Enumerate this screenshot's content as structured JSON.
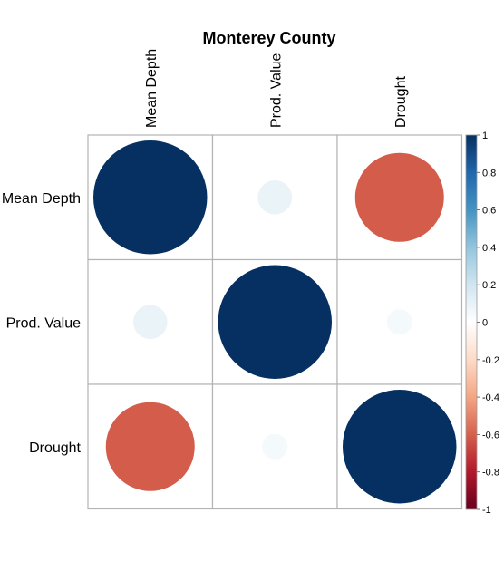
{
  "chart_data": {
    "type": "heatmap",
    "subtype": "correlation-circle-matrix",
    "title": "Monterey County",
    "variables": [
      "Mean Depth",
      "Prod. Value",
      "Drought"
    ],
    "matrix": [
      [
        1.0,
        0.09,
        -0.61
      ],
      [
        0.09,
        1.0,
        0.05
      ],
      [
        -0.61,
        0.05,
        1.0
      ]
    ],
    "colorbar": {
      "range": [
        -1,
        1
      ],
      "ticks": [
        "1",
        "0.8",
        "0.6",
        "0.4",
        "0.2",
        "0",
        "-0.2",
        "-0.4",
        "-0.6",
        "-0.8",
        "-1"
      ],
      "tick_values": [
        1,
        0.8,
        0.6,
        0.4,
        0.2,
        0,
        -0.2,
        -0.4,
        -0.6,
        -0.8,
        -1
      ],
      "palette": [
        "#67001F",
        "#B2182B",
        "#D6604D",
        "#F4A582",
        "#FDDBC7",
        "#FFFFFF",
        "#D1E5F0",
        "#92C5DE",
        "#4393C3",
        "#2166AC",
        "#053061"
      ]
    },
    "grid": true,
    "legend_position": "right"
  }
}
